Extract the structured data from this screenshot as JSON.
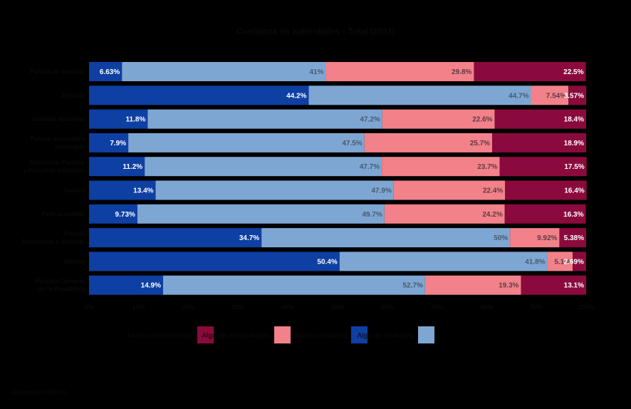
{
  "chart_data": {
    "type": "bar",
    "orientation": "horizontal",
    "stacked": "percent",
    "title": "Confianza en autoridades - Total (2023)",
    "categories": [
      "Policía de tránsito",
      "Ejército",
      "Guardia Nacional",
      "Policía preventiva municipal",
      "Ministerio Público y Fiscalías estatales",
      "Jueces",
      "Policía estatal",
      "Policía Ministerial o Judicial",
      "Marina",
      "Fiscalía General de la República"
    ],
    "series": [
      {
        "name": "Mucha confianza",
        "color": "#0e3fa3",
        "label_color": "#ffffff",
        "values": [
          6.63,
          44.2,
          11.8,
          7.9,
          11.2,
          13.4,
          9.73,
          34.7,
          50.4,
          14.9
        ],
        "labels": [
          "6.63%",
          "44.2%",
          "11.8%",
          "7.9%",
          "11.2%",
          "13.4%",
          "9.73%",
          "34.7%",
          "50.4%",
          "14.9%"
        ]
      },
      {
        "name": "Algo de confianza",
        "color": "#7ea6d3",
        "label_color": "#4a5a6e",
        "values": [
          41,
          44.7,
          47.2,
          47.5,
          47.7,
          47.9,
          49.7,
          50,
          41.8,
          52.7
        ],
        "labels": [
          "41%",
          "44.7%",
          "47.2%",
          "47.5%",
          "47.7%",
          "47.9%",
          "49.7%",
          "50%",
          "41.8%",
          "52.7%"
        ]
      },
      {
        "name": "Algo de desconfianza",
        "color": "#f2818a",
        "label_color": "#5e3c40",
        "values": [
          29.8,
          7.54,
          22.6,
          25.7,
          23.7,
          22.4,
          24.2,
          9.92,
          5.1,
          19.3
        ],
        "labels": [
          "29.8%",
          "7.54%",
          "22.6%",
          "25.7%",
          "23.7%",
          "22.4%",
          "24.2%",
          "9.92%",
          "5.1%",
          "19.3%"
        ]
      },
      {
        "name": "Mucha desconfianza",
        "color": "#8b0a3d",
        "label_color": "#ffffff",
        "values": [
          22.5,
          3.57,
          18.4,
          18.9,
          17.5,
          16.4,
          16.3,
          5.38,
          2.69,
          13.1
        ],
        "labels": [
          "22.5%",
          "3.57%",
          "18.4%",
          "18.9%",
          "17.5%",
          "16.4%",
          "16.3%",
          "5.38%",
          "2.69%",
          "13.1%"
        ]
      }
    ],
    "xlim": [
      0,
      100
    ],
    "xticks": [
      "0%",
      "10%",
      "20%",
      "30%",
      "40%",
      "50%",
      "60%",
      "70%",
      "80%",
      "90%",
      "100%"
    ],
    "legend_position": "bottom",
    "legend_order": [
      "Mucha desconfianza",
      "Algo de desconfianza",
      "Mucha confianza",
      "Algo de confianza"
    ]
  },
  "footer": "datamexico.gob.mx"
}
